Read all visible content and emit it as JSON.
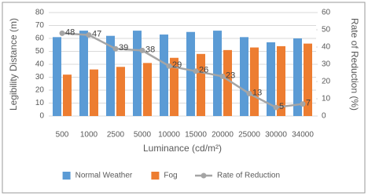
{
  "chart_data": {
    "type": "combo",
    "ylabel": "Legibility Distance (m)",
    "y2label": "Rate of Reduction (%)",
    "xlabel": "Luminance (cd/m²)",
    "categories": [
      "500",
      "1000",
      "2500",
      "5000",
      "10000",
      "15000",
      "20000",
      "25000",
      "30000",
      "34000"
    ],
    "series": [
      {
        "name": "Normal Weather",
        "type": "bar",
        "color": "#5b9bd5",
        "values": [
          61,
          66,
          62,
          66,
          63,
          65,
          66,
          61,
          57,
          60
        ]
      },
      {
        "name": "Fog",
        "type": "bar",
        "color": "#ed7d31",
        "values": [
          32,
          36,
          38,
          41,
          45,
          48,
          51,
          53,
          54,
          56
        ]
      },
      {
        "name": "Rate of Reduction",
        "type": "line",
        "axis": "y2",
        "color": "#a5a5a5",
        "values": [
          48,
          47,
          39,
          38,
          29,
          26,
          23,
          13,
          5,
          7
        ]
      }
    ],
    "ylim": [
      0,
      80
    ],
    "yticks": [
      0,
      10,
      20,
      30,
      40,
      50,
      60,
      70,
      80
    ],
    "y2lim": [
      0,
      60
    ],
    "y2ticks": [
      0,
      10,
      20,
      30,
      40,
      50,
      60
    ],
    "grid": true,
    "legend": "bottom"
  }
}
